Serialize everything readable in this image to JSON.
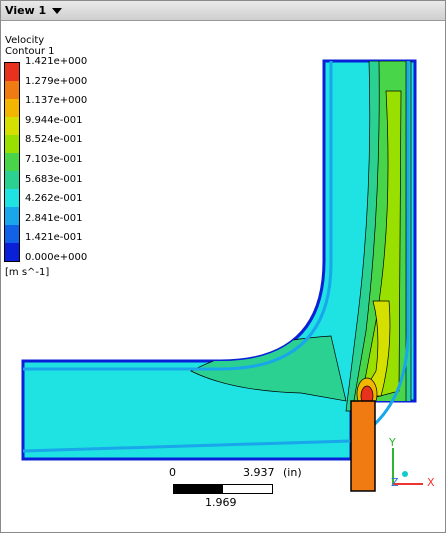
{
  "view": {
    "label": "View 1"
  },
  "legend": {
    "title_line1": "Velocity",
    "title_line2": "Contour 1",
    "units": "[m s^-1]",
    "levels": [
      "1.421e+000",
      "1.279e+000",
      "1.137e+000",
      "9.944e-001",
      "8.524e-001",
      "7.103e-001",
      "5.683e-001",
      "4.262e-001",
      "2.841e-001",
      "1.421e-001",
      "0.000e+000"
    ],
    "colors": [
      "#e8321e",
      "#f07b12",
      "#f2b600",
      "#d6e000",
      "#99e000",
      "#49d54a",
      "#2ad191",
      "#1fe3e3",
      "#19a6ea",
      "#1162e6",
      "#0a1fd8"
    ]
  },
  "scale": {
    "left": "0",
    "right": "3.937",
    "unit": "(in)",
    "mid": "1.969"
  },
  "axes": {
    "x": "X",
    "y": "Y",
    "z": "Z"
  }
}
